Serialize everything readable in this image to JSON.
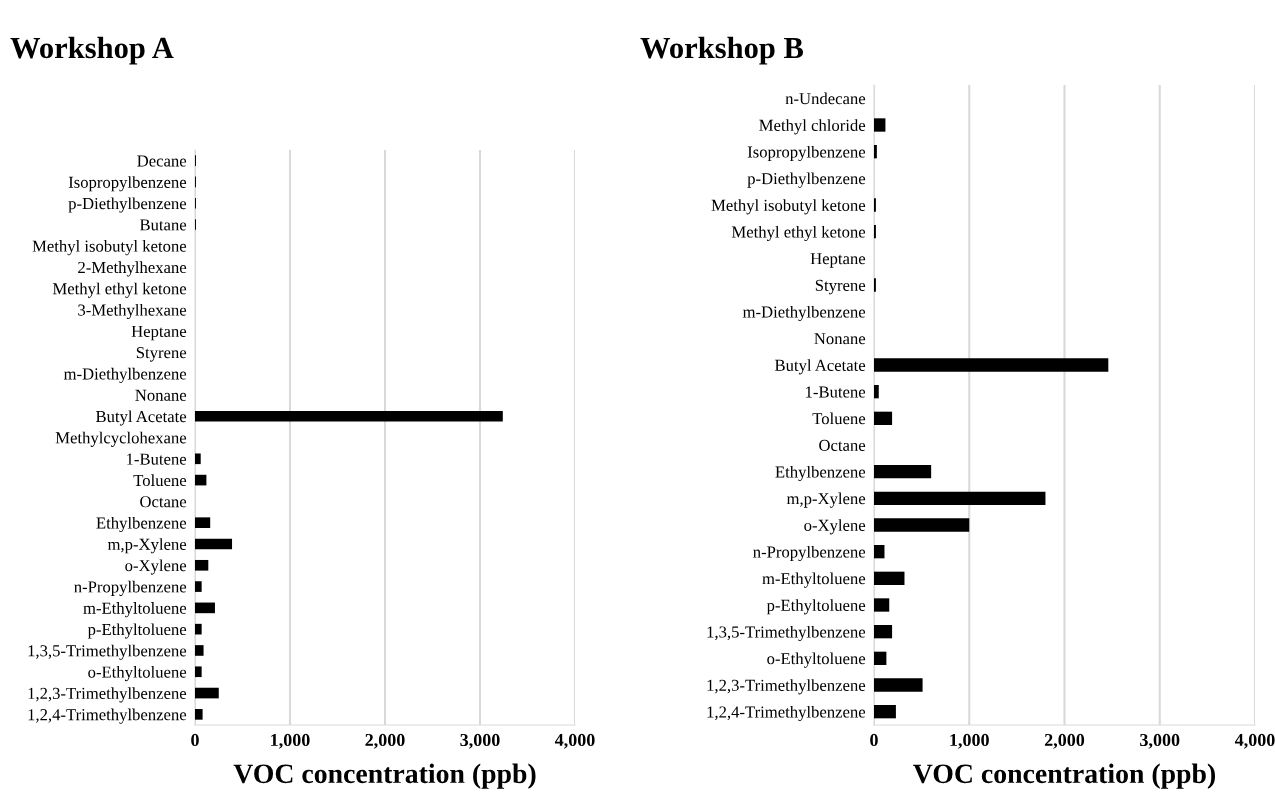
{
  "chart_data": [
    {
      "type": "bar",
      "orientation": "horizontal",
      "title": "Workshop A",
      "xlabel": "VOC concentration (ppb)",
      "categories": [
        "Decane",
        "Isopropylbenzene",
        "p-Diethylbenzene",
        "Butane",
        "Methyl isobutyl ketone",
        "2-Methylhexane",
        "Methyl ethyl ketone",
        "3-Methylhexane",
        "Heptane",
        "Styrene",
        "m-Diethylbenzene",
        "Nonane",
        "Butyl Acetate",
        "Methylcyclohexane",
        "1-Butene",
        "Toluene",
        "Octane",
        "Ethylbenzene",
        "m,p-Xylene",
        "o-Xylene",
        "n-Propylbenzene",
        "m-Ethyltoluene",
        "p-Ethyltoluene",
        "1,3,5-Trimethylbenzene",
        "o-Ethyltoluene",
        "1,2,3-Trimethylbenzene",
        "1,2,4-Trimethylbenzene"
      ],
      "values": [
        10,
        10,
        10,
        10,
        0,
        0,
        0,
        0,
        0,
        0,
        0,
        0,
        3240,
        0,
        60,
        120,
        0,
        160,
        390,
        140,
        70,
        210,
        70,
        90,
        70,
        250,
        80
      ],
      "color": "#000000",
      "xlim": [
        0,
        4000
      ],
      "xticks": [
        0,
        {
          "value": 1000,
          "label": "1,000"
        },
        {
          "value": 2000,
          "label": "2,000"
        },
        {
          "value": 3000,
          "label": "3,000"
        },
        {
          "value": 4000,
          "label": "4,000"
        }
      ],
      "grid": "x",
      "legend": false
    },
    {
      "type": "bar",
      "orientation": "horizontal",
      "title": "Workshop B",
      "xlabel": "VOC concentration (ppb)",
      "categories": [
        "n-Undecane",
        "Methyl chloride",
        "Isopropylbenzene",
        "p-Diethylbenzene",
        "Methyl isobutyl ketone",
        "Methyl ethyl ketone",
        "Heptane",
        "Styrene",
        "m-Diethylbenzene",
        "Nonane",
        "Butyl Acetate",
        "1-Butene",
        "Toluene",
        "Octane",
        "Ethylbenzene",
        "m,p-Xylene",
        "o-Xylene",
        "n-Propylbenzene",
        "m-Ethyltoluene",
        "p-Ethyltoluene",
        "1,3,5-Trimethylbenzene",
        "o-Ethyltoluene",
        "1,2,3-Trimethylbenzene",
        "1,2,4-Trimethylbenzene"
      ],
      "values": [
        0,
        120,
        30,
        0,
        20,
        20,
        0,
        20,
        0,
        0,
        2460,
        50,
        190,
        0,
        600,
        1800,
        1000,
        110,
        320,
        160,
        190,
        130,
        510,
        230
      ],
      "color": "#000000",
      "xlim": [
        0,
        4000
      ],
      "xticks": [
        0,
        {
          "value": 1000,
          "label": "1,000"
        },
        {
          "value": 2000,
          "label": "2,000"
        },
        {
          "value": 3000,
          "label": "3,000"
        },
        {
          "value": 4000,
          "label": "4,000"
        }
      ],
      "grid": "x",
      "legend": false
    }
  ]
}
